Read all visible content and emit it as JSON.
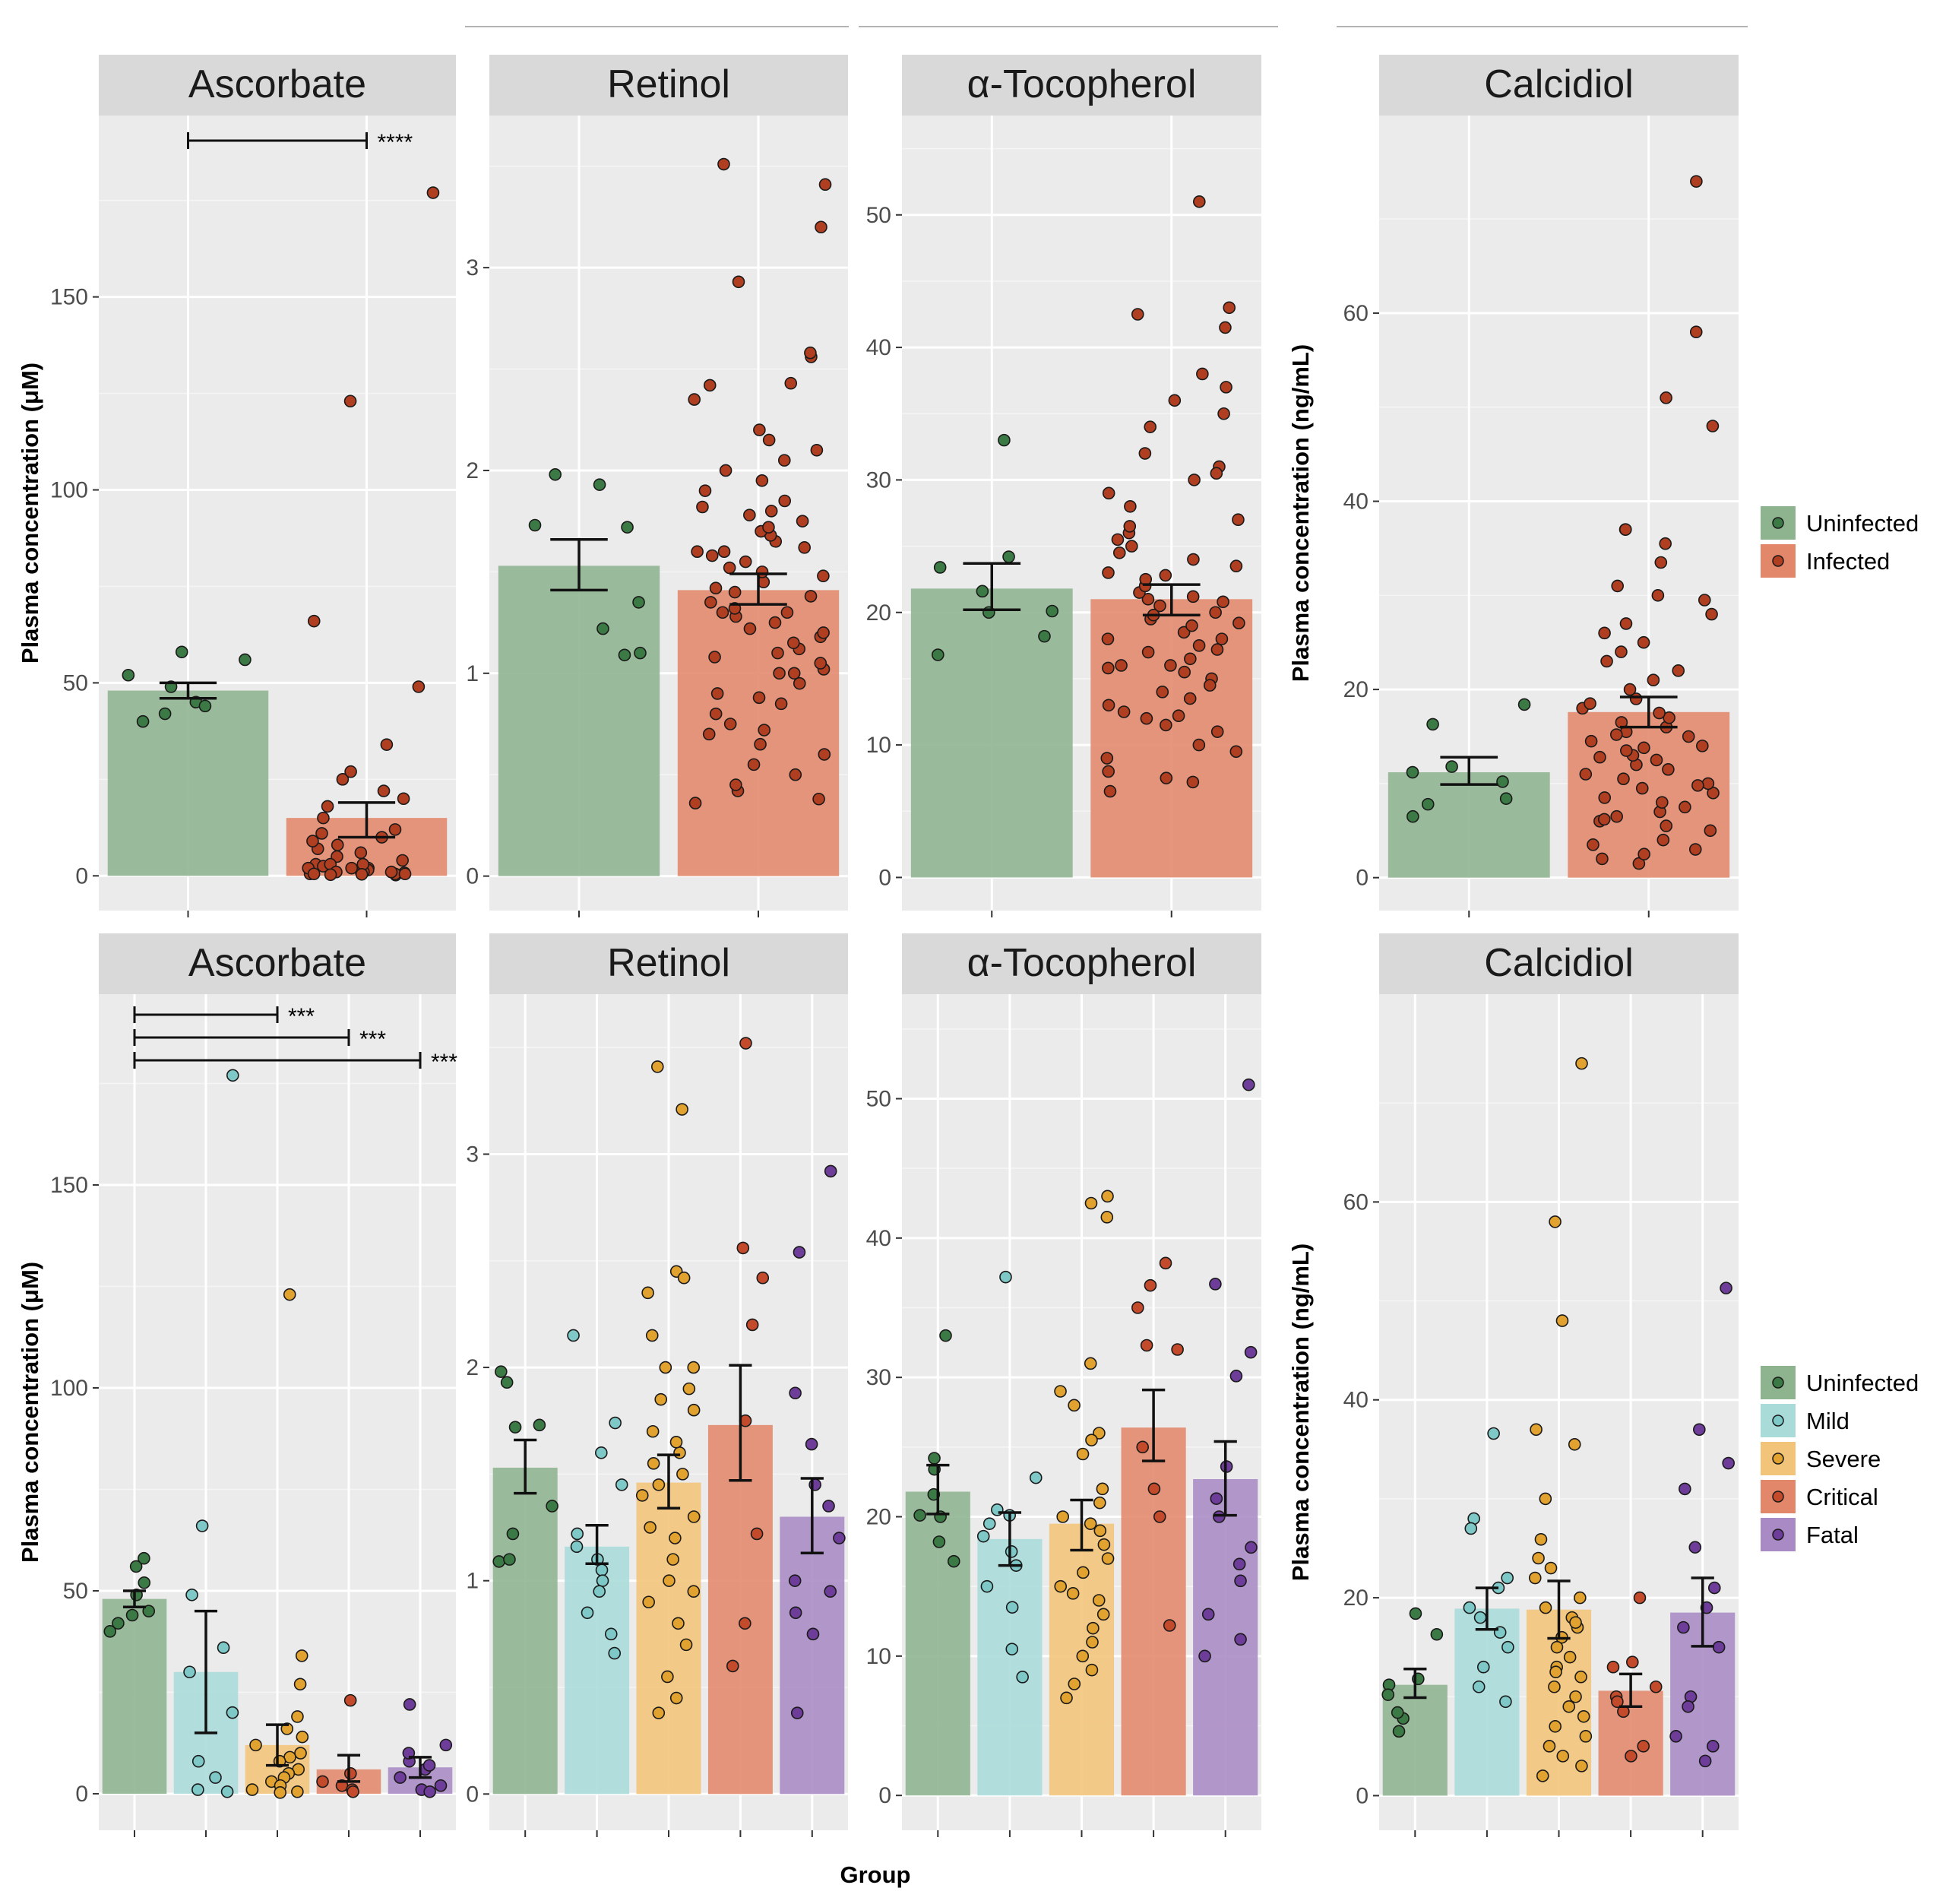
{
  "x_axis_label": "Group",
  "colors": {
    "Uninfected": "#8db38f",
    "Infected": "#e2876a",
    "Mild": "#a9dbd9",
    "Severe": "#f2c479",
    "Critical": "#e2876a",
    "Fatal": "#a98ac4"
  },
  "point_colors": {
    "Uninfected": "#3c7a45",
    "Infected": "#b03e20",
    "Mild": "#7ec9c7",
    "Severe": "#e2a22f",
    "Critical": "#c44a2c",
    "Fatal": "#6d3d99"
  },
  "legend_top": {
    "entries": [
      "Uninfected",
      "Infected"
    ]
  },
  "legend_bottom": {
    "entries": [
      "Uninfected",
      "Mild",
      "Severe",
      "Critical",
      "Fatal"
    ]
  },
  "chart_data": [
    {
      "id": "top-ascorbate",
      "type": "bar",
      "panel_title": "Ascorbate",
      "ylabel": "Plasma concentration (μM)",
      "ylim": [
        -9,
        197
      ],
      "yticks": [
        0,
        50,
        100,
        150
      ],
      "categories": [
        "Uninfected",
        "Infected"
      ],
      "values": [
        48,
        15
      ],
      "error": [
        [
          46,
          50
        ],
        [
          10,
          19
        ]
      ],
      "points": [
        [
          56,
          52,
          45,
          49,
          58,
          44,
          40,
          42
        ],
        [
          0.5,
          1,
          2,
          0.2,
          3,
          5,
          0.8,
          1.5,
          2.5,
          6,
          8,
          10,
          3,
          4,
          1,
          0.5,
          0.3,
          12,
          15,
          18,
          20,
          22,
          25,
          27,
          34,
          49,
          66,
          123,
          177,
          2,
          1,
          0.5,
          7,
          9,
          11,
          0.5,
          1,
          2,
          3,
          0.4
        ]
      ],
      "significance": [
        {
          "from": 0,
          "to": 1,
          "label": "****"
        }
      ]
    },
    {
      "id": "top-retinol",
      "type": "bar",
      "panel_title": "Retinol",
      "ylabel": "",
      "ylim": [
        -0.17,
        3.75
      ],
      "yticks": [
        0,
        1,
        2,
        3
      ],
      "categories": [
        "Uninfected",
        "Infected"
      ],
      "values": [
        1.53,
        1.41
      ],
      "error": [
        [
          1.41,
          1.66
        ],
        [
          1.34,
          1.49
        ]
      ],
      "points": [
        [
          1.93,
          1.98,
          1.73,
          1.35,
          1.22,
          1.09,
          1.72,
          1.1
        ],
        [
          0.38,
          0.42,
          0.45,
          0.55,
          0.6,
          0.65,
          0.7,
          0.75,
          0.8,
          0.85,
          0.88,
          0.9,
          0.95,
          1.0,
          1.02,
          1.05,
          1.08,
          1.1,
          1.12,
          1.15,
          1.18,
          1.2,
          1.22,
          1.25,
          1.28,
          1.3,
          1.32,
          1.35,
          1.38,
          1.4,
          1.42,
          1.45,
          1.48,
          1.5,
          1.52,
          1.55,
          1.58,
          1.6,
          1.62,
          1.65,
          1.68,
          1.7,
          1.72,
          1.75,
          1.78,
          1.8,
          1.82,
          1.85,
          1.9,
          1.95,
          2.0,
          2.05,
          2.1,
          2.15,
          2.2,
          2.35,
          2.42,
          2.43,
          2.56,
          2.58,
          2.93,
          3.2,
          3.41,
          3.51,
          0.36,
          0.5,
          0.72,
          1.0,
          1.3,
          1.6
        ]
      ],
      "significance": []
    },
    {
      "id": "top-tocopherol",
      "type": "bar",
      "panel_title": "α-Tocopherol",
      "ylabel": "",
      "ylim": [
        -2.5,
        57.5
      ],
      "yticks": [
        0,
        10,
        20,
        30,
        40,
        50
      ],
      "categories": [
        "Uninfected",
        "Infected"
      ],
      "values": [
        21.8,
        21
      ],
      "error": [
        [
          20.2,
          23.7
        ],
        [
          19.8,
          22.1
        ]
      ],
      "points": [
        [
          33,
          24.2,
          23.4,
          20,
          20.1,
          18.2,
          16.8,
          21.6
        ],
        [
          6.5,
          7.2,
          8,
          9,
          10,
          11,
          12,
          12.5,
          13,
          14,
          15,
          15.5,
          16,
          16.5,
          17,
          17.5,
          18,
          18.5,
          19,
          19.5,
          20,
          20.5,
          21,
          21.5,
          22,
          22.5,
          23,
          24,
          25,
          26,
          27,
          28,
          29,
          30,
          31,
          32,
          34,
          35,
          36,
          37,
          38,
          41.5,
          42.5,
          43,
          51,
          9.5,
          11.5,
          13.5,
          16,
          18,
          19.8,
          21.2,
          22.8,
          24.5,
          26.5,
          7.5,
          14.5,
          17.2,
          19.2,
          23.5,
          25.5,
          30.5,
          12.2,
          15.8,
          20.8
        ]
      ],
      "significance": []
    },
    {
      "id": "top-calcidiol",
      "type": "bar",
      "panel_title": "Calcidiol",
      "ylabel": "Plasma concentration (ng/mL)",
      "ylim": [
        -3.5,
        81
      ],
      "yticks": [
        0,
        20,
        40,
        60
      ],
      "categories": [
        "Uninfected",
        "Infected"
      ],
      "values": [
        11.2,
        17.6
      ],
      "error": [
        [
          9.9,
          12.8
        ],
        [
          16,
          19.2
        ]
      ],
      "points": [
        [
          18.4,
          16.3,
          11.2,
          11.8,
          6.5,
          7.8,
          8.4,
          10.2
        ],
        [
          1.5,
          2,
          3,
          4,
          5,
          5.5,
          6,
          6.5,
          7,
          7.5,
          8,
          8.5,
          9,
          9.5,
          10,
          10.5,
          11,
          11.5,
          12,
          12.5,
          13,
          13.5,
          14,
          14.5,
          15,
          15.5,
          16,
          16.5,
          17,
          17.5,
          18,
          18.5,
          19,
          20,
          21,
          22,
          23,
          24,
          25,
          26,
          27,
          28,
          29.5,
          30,
          31,
          33.5,
          35.5,
          37,
          37,
          48,
          51,
          58,
          74,
          2.5,
          3.5,
          12.8,
          13.8,
          15.2,
          9.8,
          6.2
        ]
      ],
      "significance": []
    },
    {
      "id": "bottom-ascorbate",
      "type": "bar",
      "panel_title": "Ascorbate",
      "ylabel": "Plasma concentration (μM)",
      "ylim": [
        -9,
        197
      ],
      "yticks": [
        0,
        50,
        100,
        150
      ],
      "categories": [
        "Uninfected",
        "Mild",
        "Severe",
        "Critical",
        "Fatal"
      ],
      "values": [
        48,
        30,
        12,
        6,
        6.5
      ],
      "error": [
        [
          46,
          50
        ],
        [
          15,
          45
        ],
        [
          7,
          17
        ],
        [
          3,
          9.5
        ],
        [
          4,
          9
        ]
      ],
      "points": [
        [
          56,
          52,
          45,
          49,
          58,
          44,
          40,
          42
        ],
        [
          66,
          49,
          36,
          30,
          20,
          8,
          4,
          1,
          0.5,
          177
        ],
        [
          34,
          27,
          19,
          12,
          10,
          9,
          8,
          6,
          5,
          4,
          3,
          2,
          1,
          0.5,
          0.3,
          123,
          16,
          14
        ],
        [
          23,
          5,
          3,
          2,
          1,
          0.5
        ],
        [
          22,
          12,
          8,
          6,
          4,
          2,
          1,
          0.5,
          10,
          7
        ]
      ],
      "significance": [
        {
          "from": 0,
          "to": 2,
          "label": "***"
        },
        {
          "from": 0,
          "to": 3,
          "label": "***"
        },
        {
          "from": 0,
          "to": 4,
          "label": "***"
        }
      ]
    },
    {
      "id": "bottom-retinol",
      "type": "bar",
      "panel_title": "Retinol",
      "ylabel": "",
      "ylim": [
        -0.17,
        3.75
      ],
      "yticks": [
        0,
        1,
        2,
        3
      ],
      "categories": [
        "Uninfected",
        "Mild",
        "Severe",
        "Critical",
        "Fatal"
      ],
      "values": [
        1.53,
        1.16,
        1.46,
        1.73,
        1.3
      ],
      "error": [
        [
          1.41,
          1.66
        ],
        [
          1.08,
          1.26
        ],
        [
          1.34,
          1.59
        ],
        [
          1.47,
          2.01
        ],
        [
          1.13,
          1.48
        ]
      ],
      "points": [
        [
          1.93,
          1.98,
          1.73,
          1.35,
          1.22,
          1.09,
          1.72,
          1.1
        ],
        [
          2.15,
          1.74,
          1.6,
          1.45,
          1.22,
          1.1,
          1.05,
          1.0,
          0.95,
          0.85,
          0.75,
          0.66,
          1.16
        ],
        [
          3.41,
          3.21,
          2.45,
          2.42,
          2.35,
          2.15,
          2.0,
          1.9,
          1.8,
          1.7,
          1.6,
          1.55,
          1.5,
          1.45,
          1.4,
          1.3,
          1.2,
          1.1,
          1.0,
          0.9,
          0.8,
          0.7,
          0.55,
          0.45,
          0.38,
          1.25,
          1.65,
          1.85,
          2.0,
          0.95
        ],
        [
          3.52,
          2.56,
          2.42,
          2.2,
          1.75,
          1.22,
          0.8,
          0.6
        ],
        [
          2.92,
          2.54,
          1.88,
          1.64,
          1.45,
          1.2,
          1.0,
          0.95,
          0.85,
          0.75,
          0.38,
          1.35
        ]
      ],
      "significance": []
    },
    {
      "id": "bottom-tocopherol",
      "type": "bar",
      "panel_title": "α-Tocopherol",
      "ylabel": "",
      "ylim": [
        -2.5,
        57.5
      ],
      "yticks": [
        0,
        10,
        20,
        30,
        40,
        50
      ],
      "categories": [
        "Uninfected",
        "Mild",
        "Severe",
        "Critical",
        "Fatal"
      ],
      "values": [
        21.8,
        18.4,
        19.5,
        26.4,
        22.7
      ],
      "error": [
        [
          20.2,
          23.7
        ],
        [
          16.5,
          20.3
        ],
        [
          17.6,
          21.2
        ],
        [
          24,
          29.1
        ],
        [
          20.1,
          25.4
        ]
      ],
      "points": [
        [
          33,
          24.2,
          23.4,
          20,
          20.1,
          18.2,
          16.8,
          21.6
        ],
        [
          37.2,
          22.8,
          20.5,
          20.1,
          19.5,
          17.5,
          16.5,
          15,
          13.5,
          10.5,
          8.5,
          18.6
        ],
        [
          43,
          42.5,
          41.5,
          31,
          29,
          28,
          26,
          24.5,
          22,
          21,
          20,
          19,
          18,
          17,
          16,
          15,
          14,
          13,
          12,
          11,
          10,
          9,
          8,
          7,
          19.5,
          25.5,
          14.5
        ],
        [
          38.2,
          36.6,
          35,
          32.3,
          32,
          25,
          22,
          20,
          12.2
        ],
        [
          51,
          36.7,
          31.8,
          30.1,
          23.6,
          21.3,
          20,
          17.8,
          16.6,
          15.4,
          13,
          11.2,
          10
        ]
      ],
      "significance": []
    },
    {
      "id": "bottom-calcidiol",
      "type": "bar",
      "panel_title": "Calcidiol",
      "ylabel": "Plasma concentration (ng/mL)",
      "ylim": [
        -3.5,
        81
      ],
      "yticks": [
        0,
        20,
        40,
        60
      ],
      "categories": [
        "Uninfected",
        "Mild",
        "Severe",
        "Critical",
        "Fatal"
      ],
      "values": [
        11.2,
        18.9,
        18.8,
        10.6,
        18.5
      ],
      "error": [
        [
          9.9,
          12.8
        ],
        [
          16.8,
          21
        ],
        [
          15.9,
          21.7
        ],
        [
          9,
          12.3
        ],
        [
          15.1,
          22
        ]
      ],
      "points": [
        [
          18.4,
          16.3,
          11.2,
          11.8,
          6.5,
          7.8,
          8.4,
          10.2
        ],
        [
          36.6,
          28,
          27,
          22,
          21,
          19,
          18,
          16.5,
          15,
          13,
          11,
          9.5
        ],
        [
          74,
          58,
          48,
          37,
          35.5,
          30,
          25.9,
          24,
          23,
          22,
          20,
          19,
          18,
          17,
          16,
          15,
          14,
          13,
          12,
          11,
          10,
          9,
          8,
          7,
          6,
          5,
          4,
          3,
          2,
          17.5,
          12.5
        ],
        [
          20,
          13,
          11,
          10,
          9.5,
          8.5,
          5,
          4,
          13.5
        ],
        [
          51.3,
          37,
          33.6,
          31,
          25.1,
          21,
          19,
          17,
          10,
          9,
          6,
          5,
          3.5,
          15
        ]
      ],
      "significance": []
    }
  ]
}
